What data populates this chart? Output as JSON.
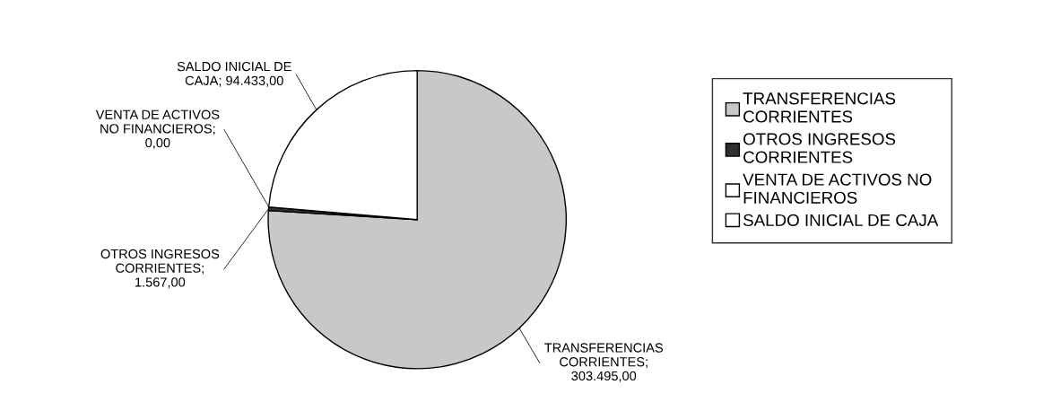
{
  "chart_data": {
    "type": "pie",
    "categories": [
      "TRANSFERENCIAS CORRIENTES",
      "OTROS INGRESOS CORRIENTES",
      "VENTA DE ACTIVOS NO FINANCIEROS",
      "SALDO INICIAL DE CAJA"
    ],
    "values": [
      303495,
      1567,
      0,
      94433
    ],
    "colors": [
      "#c8c8c8",
      "#303030",
      "#ffffff",
      "#ffffff"
    ],
    "value_labels": [
      "TRANSFERENCIAS CORRIENTES; 303.495,00",
      "OTROS INGRESOS CORRIENTES; 1.567,00",
      "VENTA DE ACTIVOS NO FINANCIEROS; 0,00",
      "SALDO INICIAL DE CAJA; 94.433,00"
    ],
    "legend": "right"
  }
}
